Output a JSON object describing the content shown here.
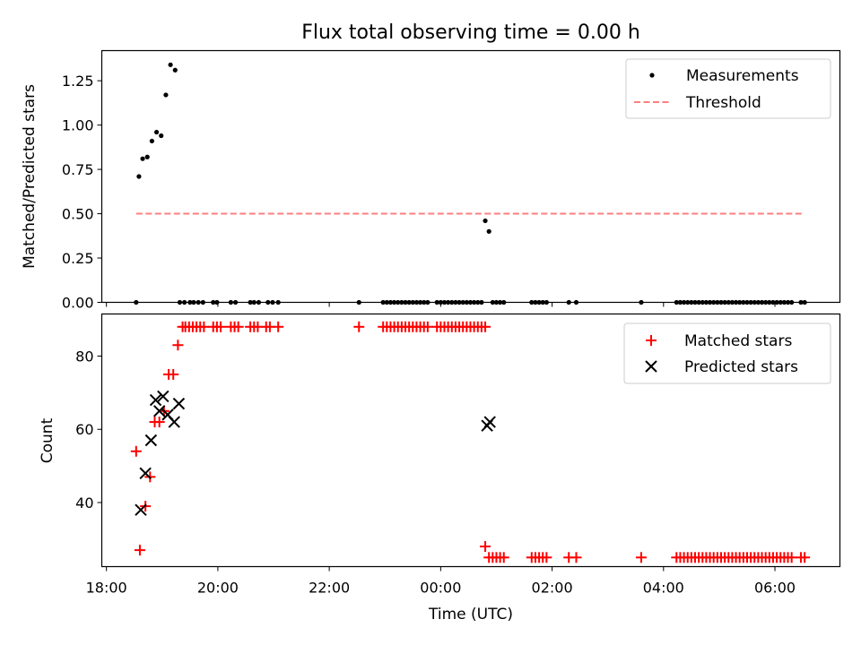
{
  "title": "Flux total observing time = 0.00 h",
  "x_axis": {
    "label": "Time (UTC)",
    "ticks": [
      {
        "label": "18:00",
        "h": 18
      },
      {
        "label": "20:00",
        "h": 20
      },
      {
        "label": "22:00",
        "h": 22
      },
      {
        "label": "00:00",
        "h": 24
      },
      {
        "label": "02:00",
        "h": 26
      },
      {
        "label": "04:00",
        "h": 28
      },
      {
        "label": "06:00",
        "h": 30
      }
    ]
  },
  "chart_data": [
    {
      "type": "scatter",
      "panel": "top",
      "ylabel": "Matched/Predicted stars",
      "xlim": [
        "17:55",
        "07:10"
      ],
      "ylim": [
        0,
        1.42
      ],
      "yticks": [
        "0.00",
        "0.25",
        "0.50",
        "0.75",
        "1.00",
        "1.25"
      ],
      "legend": {
        "position": "upper right",
        "entries": [
          "Measurements",
          "Threshold"
        ]
      },
      "series": [
        {
          "name": "Measurements",
          "color": "#000000",
          "marker": "dot",
          "x": [
            "18:35",
            "18:39",
            "18:44",
            "18:49",
            "18:54",
            "18:59",
            "19:04",
            "19:09",
            "19:14",
            "19:19",
            "19:24",
            "18:32",
            "19:30",
            "19:34",
            "19:39",
            "19:44",
            "19:55",
            "19:59",
            "20:14",
            "20:19",
            "20:35",
            "20:39",
            "20:44",
            "20:54",
            "20:59",
            "21:05",
            "22:32",
            "22:58",
            "23:02",
            "23:06",
            "23:10",
            "23:14",
            "23:18",
            "23:22",
            "23:26",
            "23:30",
            "23:34",
            "23:38",
            "23:42",
            "23:46",
            "23:56",
            "24:00",
            "24:04",
            "24:08",
            "24:12",
            "24:16",
            "24:20",
            "24:24",
            "24:28",
            "24:32",
            "24:36",
            "24:40",
            "24:44",
            "00:48",
            "00:52",
            "00:56",
            "01:00",
            "01:04",
            "01:08",
            "01:38",
            "01:42",
            "01:46",
            "01:50",
            "01:54",
            "02:18",
            "02:26",
            "03:36",
            "04:14",
            "04:18",
            "04:22",
            "04:26",
            "04:30",
            "04:34",
            "04:38",
            "04:42",
            "04:46",
            "04:50",
            "04:54",
            "04:58",
            "05:02",
            "05:06",
            "05:10",
            "05:14",
            "05:18",
            "05:22",
            "05:26",
            "05:30",
            "05:34",
            "05:38",
            "05:42",
            "05:46",
            "05:50",
            "05:54",
            "05:58",
            "06:02",
            "06:06",
            "06:10",
            "06:14",
            "06:18",
            "06:28",
            "06:32"
          ],
          "y": [
            0.71,
            0.81,
            0.82,
            0.91,
            0.96,
            0.94,
            1.17,
            1.34,
            1.31,
            0,
            0,
            0,
            0,
            0,
            0,
            0,
            0,
            0,
            0,
            0,
            0,
            0,
            0,
            0,
            0,
            0,
            0,
            0,
            0,
            0,
            0,
            0,
            0,
            0,
            0,
            0,
            0,
            0,
            0,
            0,
            0,
            0,
            0,
            0,
            0,
            0,
            0,
            0,
            0,
            0,
            0,
            0,
            0,
            0.46,
            0.4,
            0,
            0,
            0,
            0,
            0,
            0,
            0,
            0,
            0,
            0,
            0,
            0,
            0,
            0,
            0,
            0,
            0,
            0,
            0,
            0,
            0,
            0,
            0,
            0,
            0,
            0,
            0,
            0,
            0,
            0,
            0,
            0,
            0,
            0,
            0,
            0,
            0,
            0,
            0,
            0,
            0,
            0,
            0,
            0,
            0,
            0
          ]
        },
        {
          "name": "Threshold",
          "color": "#ff7f7f",
          "style": "dashed",
          "x": [
            "18:32",
            "06:32"
          ],
          "y": [
            0.5,
            0.5
          ]
        }
      ]
    },
    {
      "type": "scatter",
      "panel": "bottom",
      "ylabel": "Count",
      "xlim": [
        "17:55",
        "07:10"
      ],
      "ylim": [
        22.5,
        91.5
      ],
      "yticks": [
        "40",
        "60",
        "80"
      ],
      "legend": {
        "position": "upper right",
        "entries": [
          "Matched stars",
          "Predicted stars"
        ]
      },
      "series": [
        {
          "name": "Matched stars",
          "color": "#ff0000",
          "marker": "plus",
          "x": [
            "18:32",
            "18:36",
            "18:42",
            "18:47",
            "18:52",
            "18:57",
            "19:02",
            "19:07",
            "19:12",
            "19:17",
            "19:22",
            "19:25",
            "19:29",
            "19:33",
            "19:37",
            "19:41",
            "19:45",
            "19:55",
            "19:59",
            "20:03",
            "20:14",
            "20:18",
            "20:22",
            "20:35",
            "20:39",
            "20:43",
            "20:52",
            "20:56",
            "21:05",
            "22:32",
            "22:58",
            "23:02",
            "23:06",
            "23:10",
            "23:14",
            "23:18",
            "23:22",
            "23:26",
            "23:30",
            "23:34",
            "23:38",
            "23:42",
            "23:46",
            "23:56",
            "24:00",
            "24:04",
            "24:08",
            "24:12",
            "24:16",
            "24:20",
            "24:24",
            "24:28",
            "24:32",
            "24:36",
            "24:40",
            "24:44",
            "24:48",
            "00:48",
            "00:52",
            "00:56",
            "01:00",
            "01:04",
            "01:08",
            "01:38",
            "01:42",
            "01:46",
            "01:50",
            "01:54",
            "02:18",
            "02:26",
            "03:36",
            "04:14",
            "04:18",
            "04:22",
            "04:26",
            "04:30",
            "04:34",
            "04:38",
            "04:42",
            "04:46",
            "04:50",
            "04:54",
            "04:58",
            "05:02",
            "05:06",
            "05:10",
            "05:14",
            "05:18",
            "05:22",
            "05:26",
            "05:30",
            "05:34",
            "05:38",
            "05:42",
            "05:46",
            "05:50",
            "05:54",
            "05:58",
            "06:02",
            "06:06",
            "06:10",
            "06:14",
            "06:18",
            "06:28",
            "06:32"
          ],
          "y": [
            54,
            27,
            39,
            47,
            62,
            62,
            65,
            75,
            75,
            83,
            88,
            88,
            88,
            88,
            88,
            88,
            88,
            88,
            88,
            88,
            88,
            88,
            88,
            88,
            88,
            88,
            88,
            88,
            88,
            88,
            88,
            88,
            88,
            88,
            88,
            88,
            88,
            88,
            88,
            88,
            88,
            88,
            88,
            88,
            88,
            88,
            88,
            88,
            88,
            88,
            88,
            88,
            88,
            88,
            88,
            88,
            88,
            28,
            25,
            25,
            25,
            25,
            25,
            25,
            25,
            25,
            25,
            25,
            25,
            25,
            25,
            25,
            25,
            25,
            25,
            25,
            25,
            25,
            25,
            25,
            25,
            25,
            25,
            25,
            25,
            25,
            25,
            25,
            25,
            25,
            25,
            25,
            25,
            25,
            25,
            25,
            25,
            25,
            25,
            25,
            25,
            25,
            25,
            25,
            25
          ]
        },
        {
          "name": "Predicted stars",
          "color": "#000000",
          "marker": "x",
          "x": [
            "18:37",
            "18:42",
            "18:48",
            "18:53",
            "18:57",
            "19:01",
            "19:06",
            "19:13",
            "19:18",
            "00:50",
            "00:53"
          ],
          "y": [
            38,
            48,
            57,
            68,
            65,
            69,
            64,
            62,
            67,
            61,
            62
          ]
        }
      ]
    }
  ]
}
